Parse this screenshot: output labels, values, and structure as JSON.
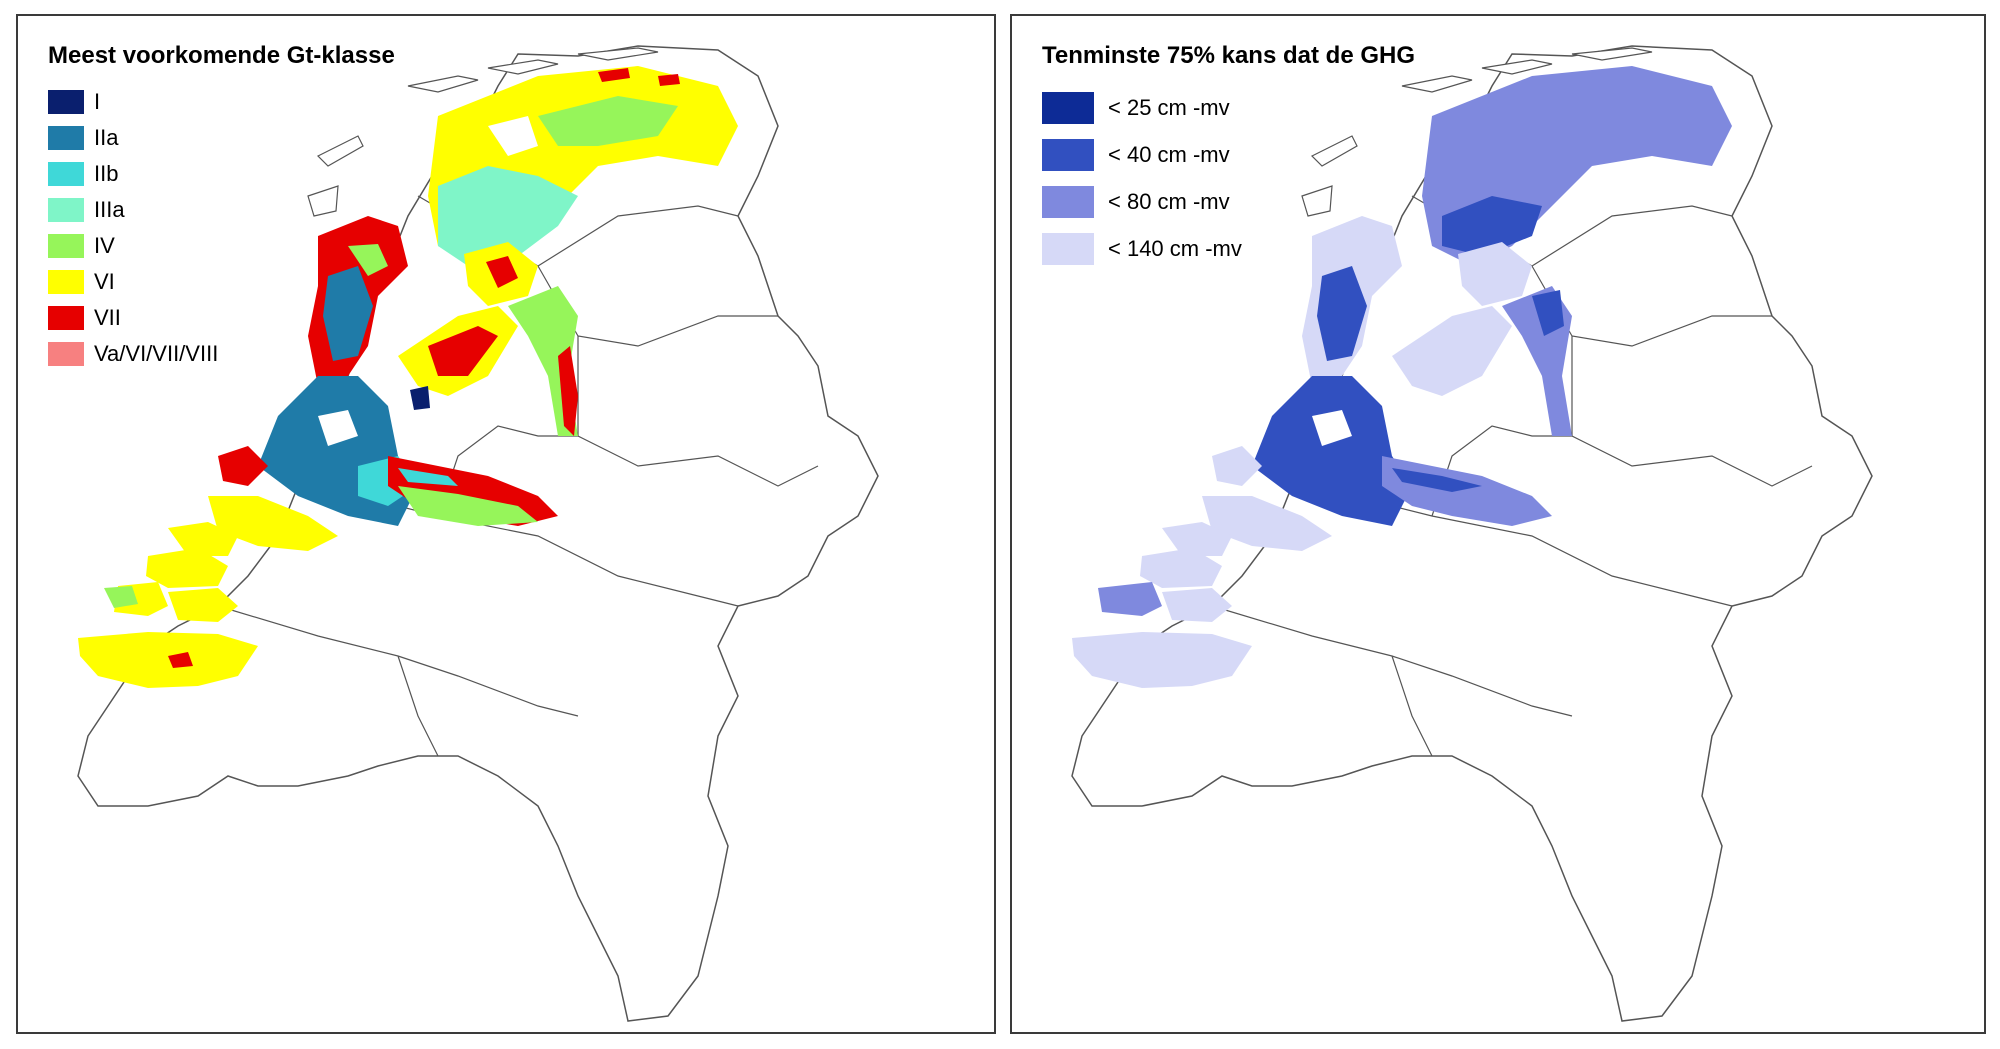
{
  "left_panel": {
    "title": "Meest voorkomende Gt-klasse",
    "legend": [
      {
        "label": "I",
        "color": "#0a1f6e"
      },
      {
        "label": "IIa",
        "color": "#1f7ba8"
      },
      {
        "label": "IIb",
        "color": "#3fd8d8"
      },
      {
        "label": "IIIa",
        "color": "#7ff5c8"
      },
      {
        "label": "IV",
        "color": "#96f55a"
      },
      {
        "label": "VI",
        "color": "#ffff00"
      },
      {
        "label": "VII",
        "color": "#e60000"
      },
      {
        "label": "Va/VI/VII/VIII",
        "color": "#f78080"
      }
    ]
  },
  "right_panel": {
    "title": "Tenminste 75% kans dat de GHG",
    "legend": [
      {
        "label": "< 25 cm -mv",
        "color": "#0d2b96"
      },
      {
        "label": "< 40 cm -mv",
        "color": "#3150c0"
      },
      {
        "label": "< 80 cm -mv",
        "color": "#7f89de"
      },
      {
        "label": "< 140 cm -mv",
        "color": "#d6d9f7"
      }
    ]
  }
}
